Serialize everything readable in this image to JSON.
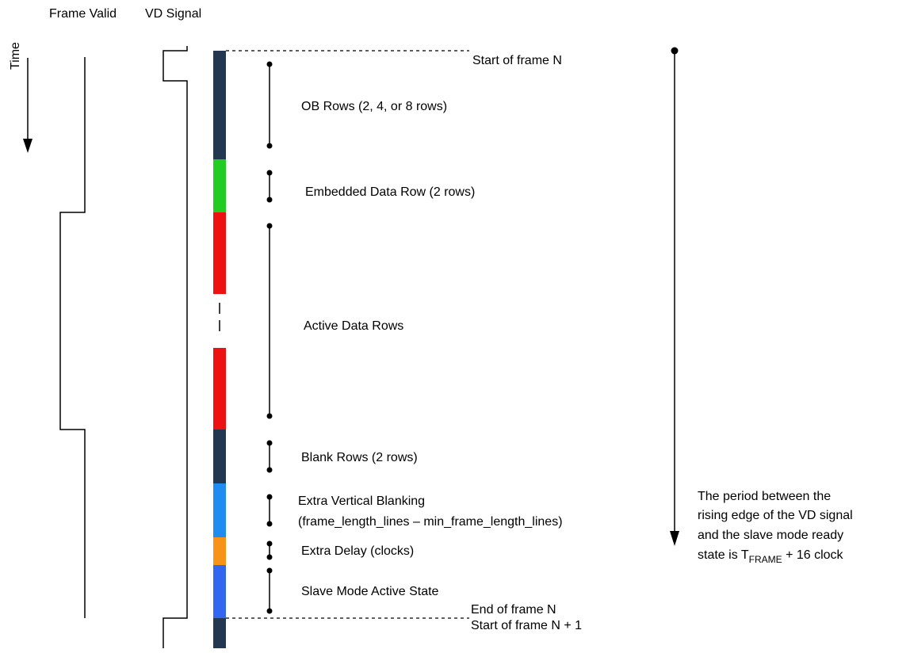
{
  "headers": {
    "frame_valid": "Frame Valid",
    "vd_signal": "VD Signal",
    "time": "Time"
  },
  "markers": {
    "start_frame_n": "Start of frame N",
    "end_frame_n": "End of frame N",
    "start_frame_n1": "Start of frame N + 1"
  },
  "segments": [
    {
      "id": "ob-rows",
      "label": "OB Rows (2, 4, or 8 rows)",
      "color": "#243750"
    },
    {
      "id": "embedded-data",
      "label": "Embedded Data Row (2 rows)",
      "color": "#22cc22"
    },
    {
      "id": "active-data",
      "label": "Active Data Rows",
      "color": "#ee1111"
    },
    {
      "id": "blank-rows",
      "label": "Blank Rows (2 rows)",
      "color": "#243750"
    },
    {
      "id": "extra-vblank",
      "label": "Extra Vertical Blanking",
      "label2": "(frame_length_lines – min_frame_length_lines)",
      "color": "#1e8cf0"
    },
    {
      "id": "extra-delay",
      "label": "Extra Delay (clocks)",
      "color": "#f79418"
    },
    {
      "id": "slave-active",
      "label": "Slave Mode Active State",
      "color": "#3366f0"
    }
  ],
  "period_note": {
    "line1": "The period between the",
    "line2": "rising edge of the VD signal",
    "line3": "and the slave mode ready",
    "line4_prefix": "state is T",
    "line4_sub": "FRAME",
    "line4_suffix": " + 16 clock"
  }
}
